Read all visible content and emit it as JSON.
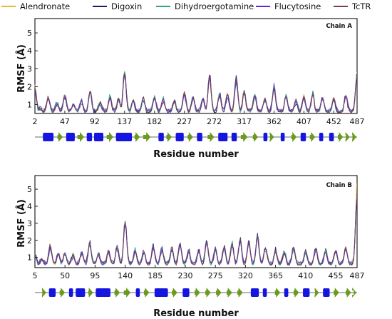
{
  "legend": [
    "Alendronate",
    "Digoxin",
    "Dihydroergotamine",
    "Flucytosine",
    "TcTR"
  ],
  "colors": {
    "Alendronate": "#e8b830",
    "Digoxin": "#1a1a6e",
    "Dihydroergotamine": "#2aa58a",
    "Flucytosine": "#5b2ccf",
    "TcTR": "#7a3a5a",
    "helix": "#1515e0",
    "strand": "#6a9a1e",
    "coil": "#888888"
  },
  "chart_data": [
    {
      "type": "line",
      "annotation": "Chain A",
      "xlabel": "Residue number",
      "ylabel": "RMSF (Å)",
      "xlim": [
        2,
        487
      ],
      "ylim": [
        0.5,
        5.8
      ],
      "xticks": [
        2,
        47,
        92,
        137,
        182,
        227,
        272,
        317,
        362,
        407,
        452,
        487
      ],
      "yticks": [
        1,
        2,
        3,
        4,
        5
      ],
      "peaks": [
        [
          2,
          1.9
        ],
        [
          10,
          0.8
        ],
        [
          22,
          1.4
        ],
        [
          35,
          1.1
        ],
        [
          47,
          1.5
        ],
        [
          60,
          1.0
        ],
        [
          72,
          1.2
        ],
        [
          85,
          1.7
        ],
        [
          100,
          1.1
        ],
        [
          115,
          1.4
        ],
        [
          128,
          1.3
        ],
        [
          137,
          2.9
        ],
        [
          150,
          1.2
        ],
        [
          165,
          1.3
        ],
        [
          182,
          1.4
        ],
        [
          195,
          1.3
        ],
        [
          212,
          1.2
        ],
        [
          227,
          1.6
        ],
        [
          240,
          1.4
        ],
        [
          255,
          1.3
        ],
        [
          265,
          2.6
        ],
        [
          280,
          1.6
        ],
        [
          292,
          1.6
        ],
        [
          305,
          2.4
        ],
        [
          317,
          1.7
        ],
        [
          333,
          1.5
        ],
        [
          348,
          1.3
        ],
        [
          362,
          2.0
        ],
        [
          380,
          1.5
        ],
        [
          395,
          1.2
        ],
        [
          407,
          1.4
        ],
        [
          420,
          1.6
        ],
        [
          435,
          1.4
        ],
        [
          452,
          1.3
        ],
        [
          470,
          1.5
        ],
        [
          487,
          2.7
        ]
      ]
    },
    {
      "type": "line",
      "annotation": "Chain B",
      "xlabel": "Residue number",
      "ylabel": "RMSF (Å)",
      "xlim": [
        5,
        487
      ],
      "ylim": [
        0.4,
        5.8
      ],
      "xticks": [
        5,
        50,
        95,
        140,
        185,
        230,
        275,
        320,
        365,
        410,
        455,
        487
      ],
      "yticks": [
        1,
        2,
        3,
        4,
        5
      ],
      "peaks": [
        [
          5,
          1.2
        ],
        [
          15,
          0.9
        ],
        [
          28,
          1.6
        ],
        [
          40,
          1.2
        ],
        [
          50,
          1.3
        ],
        [
          62,
          1.1
        ],
        [
          75,
          1.3
        ],
        [
          87,
          1.9
        ],
        [
          100,
          1.2
        ],
        [
          115,
          1.4
        ],
        [
          128,
          1.6
        ],
        [
          140,
          3.2
        ],
        [
          155,
          1.4
        ],
        [
          168,
          1.3
        ],
        [
          182,
          1.6
        ],
        [
          195,
          1.5
        ],
        [
          210,
          1.5
        ],
        [
          222,
          1.8
        ],
        [
          235,
          1.4
        ],
        [
          250,
          1.4
        ],
        [
          262,
          1.9
        ],
        [
          275,
          1.5
        ],
        [
          288,
          1.6
        ],
        [
          300,
          1.8
        ],
        [
          312,
          2.0
        ],
        [
          325,
          1.9
        ],
        [
          338,
          2.3
        ],
        [
          350,
          1.5
        ],
        [
          365,
          1.4
        ],
        [
          378,
          1.3
        ],
        [
          392,
          1.6
        ],
        [
          410,
          1.3
        ],
        [
          425,
          1.5
        ],
        [
          440,
          1.4
        ],
        [
          455,
          1.4
        ],
        [
          470,
          1.5
        ],
        [
          487,
          4.9
        ]
      ]
    }
  ],
  "secondary_structure": [
    {
      "elements": [
        [
          "h",
          14,
          30
        ],
        [
          "s",
          36,
          44
        ],
        [
          "h",
          49,
          62
        ],
        [
          "s",
          66,
          76
        ],
        [
          "h",
          80,
          88
        ],
        [
          "h",
          91,
          105
        ],
        [
          "s",
          110,
          120
        ],
        [
          "h",
          124,
          148
        ],
        [
          "s",
          152,
          160
        ],
        [
          "s",
          165,
          176
        ],
        [
          "h",
          188,
          196
        ],
        [
          "s",
          200,
          208
        ],
        [
          "h",
          214,
          226
        ],
        [
          "s",
          232,
          240
        ],
        [
          "h",
          246,
          254
        ],
        [
          "s",
          262,
          272
        ],
        [
          "h",
          278,
          292
        ],
        [
          "h",
          298,
          306
        ],
        [
          "s",
          312,
          322
        ],
        [
          "s",
          330,
          338
        ],
        [
          "h",
          346,
          352
        ],
        [
          "s",
          356,
          362
        ],
        [
          "h",
          372,
          378
        ],
        [
          "s",
          388,
          396
        ],
        [
          "h",
          402,
          410
        ],
        [
          "s",
          416,
          424
        ],
        [
          "h",
          430,
          436
        ],
        [
          "h",
          445,
          452
        ],
        [
          "s",
          458,
          466
        ],
        [
          "s",
          470,
          476
        ],
        [
          "s",
          480,
          486
        ]
      ]
    },
    {
      "elements": [
        [
          "s",
          16,
          22
        ],
        [
          "h",
          26,
          36
        ],
        [
          "s",
          42,
          50
        ],
        [
          "h",
          56,
          62
        ],
        [
          "h",
          66,
          80
        ],
        [
          "s",
          85,
          92
        ],
        [
          "h",
          96,
          118
        ],
        [
          "s",
          124,
          132
        ],
        [
          "s",
          138,
          148
        ],
        [
          "h",
          156,
          162
        ],
        [
          "s",
          168,
          176
        ],
        [
          "h",
          184,
          204
        ],
        [
          "s",
          210,
          218
        ],
        [
          "h",
          226,
          236
        ],
        [
          "s",
          244,
          252
        ],
        [
          "s",
          260,
          268
        ],
        [
          "s",
          276,
          284
        ],
        [
          "s",
          292,
          300
        ],
        [
          "s",
          308,
          316
        ],
        [
          "h",
          328,
          340
        ],
        [
          "h",
          346,
          352
        ],
        [
          "s",
          364,
          372
        ],
        [
          "h",
          378,
          384
        ],
        [
          "s",
          392,
          400
        ],
        [
          "h",
          406,
          416
        ],
        [
          "s",
          424,
          430
        ],
        [
          "h",
          436,
          446
        ],
        [
          "s",
          452,
          460
        ],
        [
          "s",
          470,
          478
        ],
        [
          "s",
          482,
          486
        ]
      ]
    }
  ]
}
